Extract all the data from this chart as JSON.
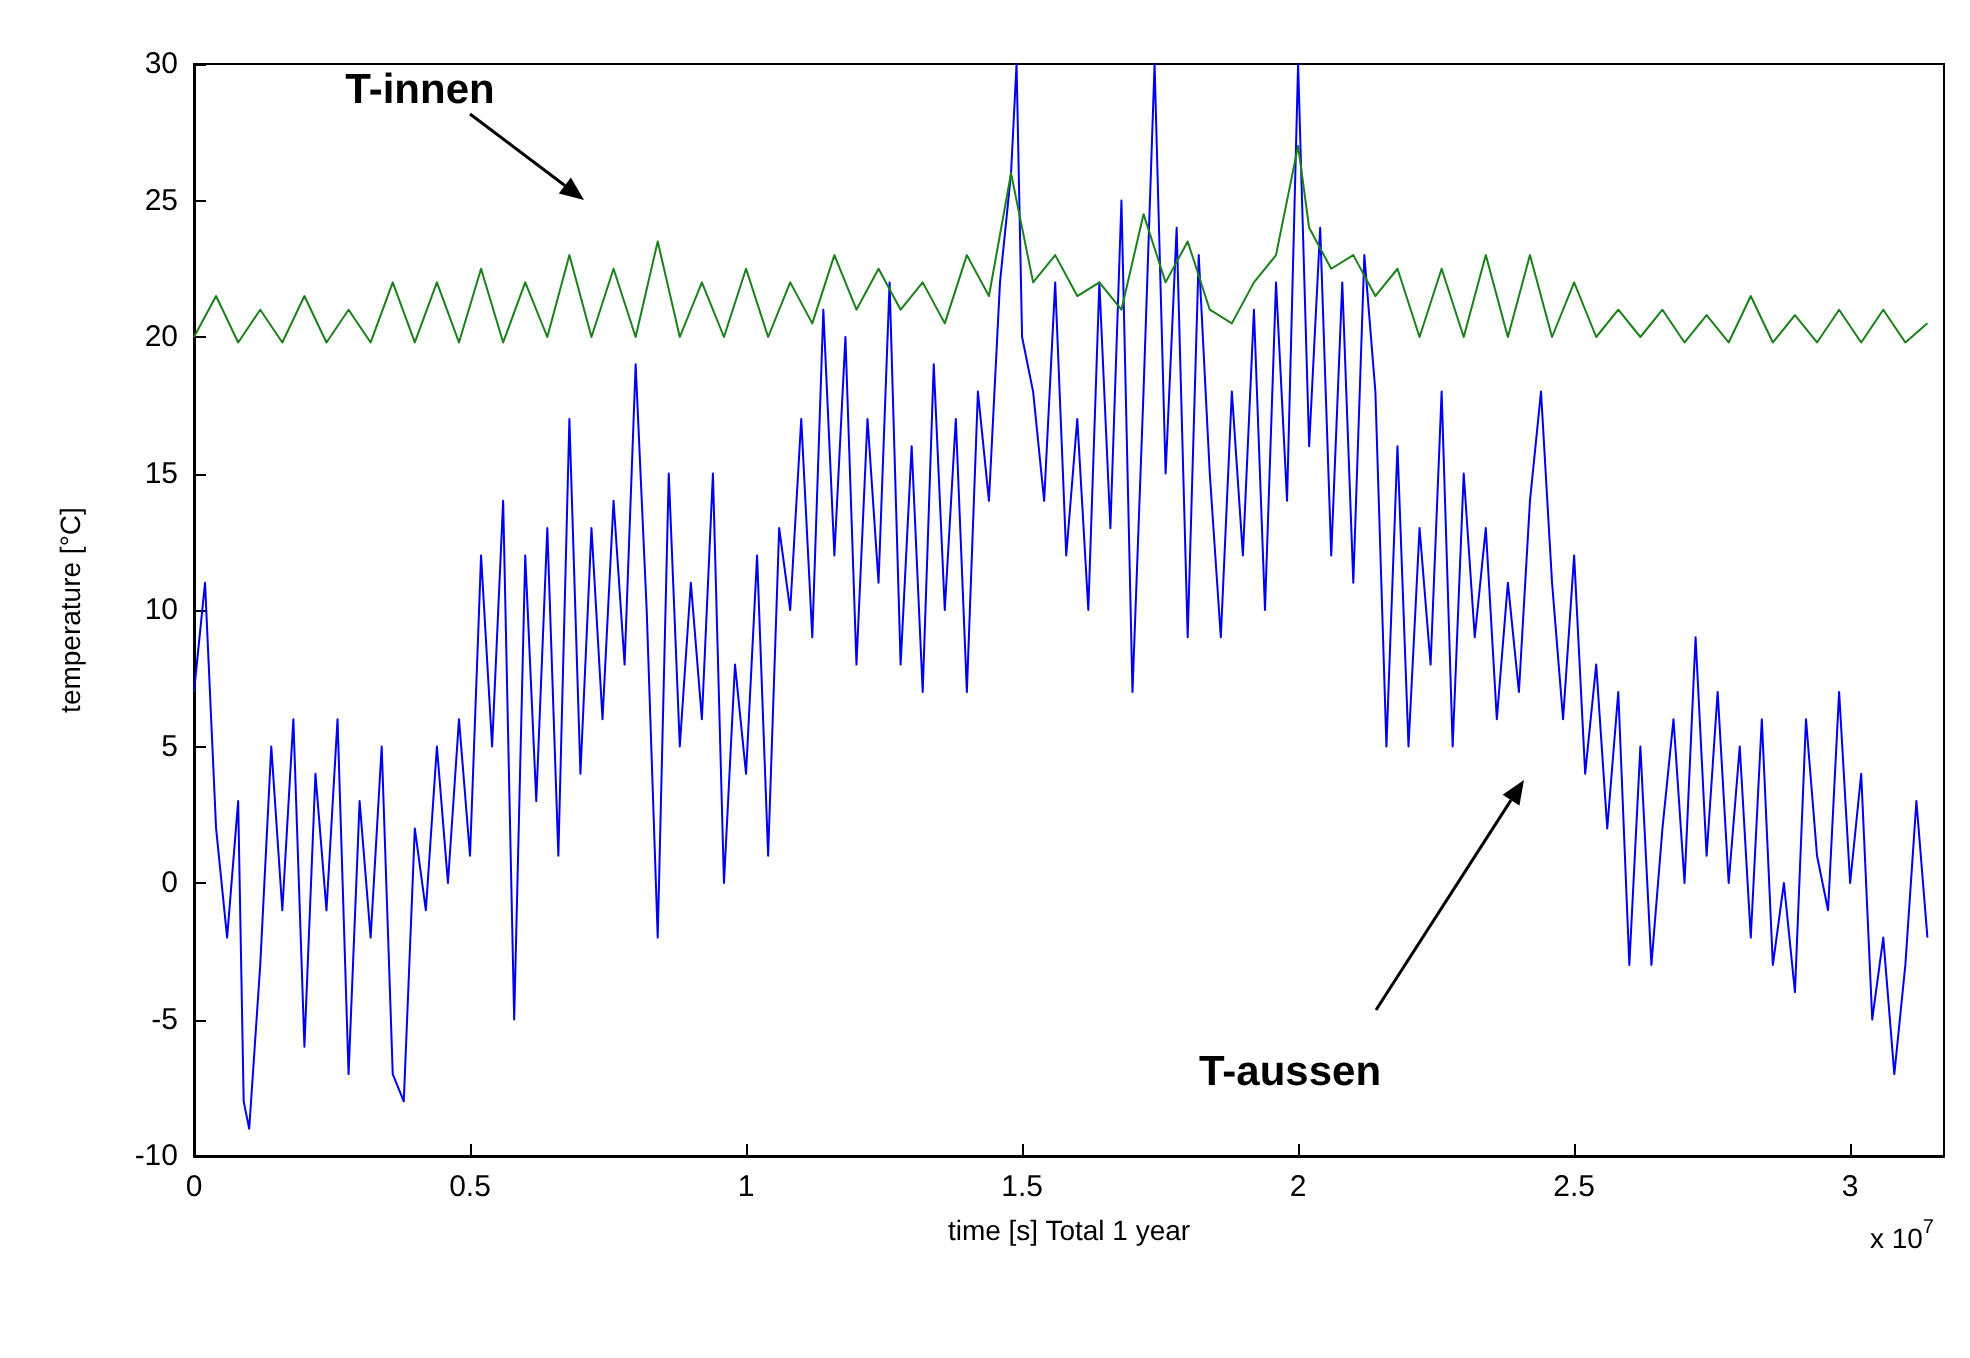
{
  "chart_data": {
    "type": "line",
    "xlabel": "time [s] Total 1 year",
    "ylabel": "temperature [°C]",
    "xlim": [
      0,
      3.17
    ],
    "xticks": [
      0,
      0.5,
      1,
      1.5,
      2,
      2.5,
      3
    ],
    "ylim": [
      -10,
      30
    ],
    "yticks": [
      -10,
      -5,
      0,
      5,
      10,
      15,
      20,
      25,
      30
    ],
    "grid": false,
    "marker": "none",
    "line_style": "solid",
    "annotations": [
      "T-innen",
      "T-aussen",
      "x 10$^{7}$"
    ],
    "series": [
      {
        "color": "#0000f0",
        "x": [
          0,
          0.02,
          0.04,
          0.06,
          0.08,
          0.09,
          0.1,
          0.12,
          0.14,
          0.16,
          0.18,
          0.2,
          0.22,
          0.24,
          0.26,
          0.28,
          0.3,
          0.32,
          0.34,
          0.36,
          0.38,
          0.4,
          0.42,
          0.44,
          0.46,
          0.48,
          0.5,
          0.52,
          0.54,
          0.56,
          0.58,
          0.6,
          0.62,
          0.64,
          0.66,
          0.68,
          0.7,
          0.72,
          0.74,
          0.76,
          0.78,
          0.8,
          0.82,
          0.84,
          0.86,
          0.88,
          0.9,
          0.92,
          0.94,
          0.96,
          0.98,
          1.0,
          1.02,
          1.04,
          1.06,
          1.08,
          1.1,
          1.12,
          1.14,
          1.16,
          1.18,
          1.2,
          1.22,
          1.24,
          1.26,
          1.28,
          1.3,
          1.32,
          1.34,
          1.36,
          1.38,
          1.4,
          1.42,
          1.44,
          1.46,
          1.48,
          1.49,
          1.5,
          1.52,
          1.54,
          1.56,
          1.58,
          1.6,
          1.62,
          1.64,
          1.66,
          1.68,
          1.7,
          1.72,
          1.74,
          1.76,
          1.78,
          1.8,
          1.82,
          1.84,
          1.86,
          1.88,
          1.9,
          1.92,
          1.94,
          1.96,
          1.98,
          2.0,
          2.02,
          2.04,
          2.06,
          2.08,
          2.1,
          2.12,
          2.14,
          2.16,
          2.18,
          2.2,
          2.22,
          2.24,
          2.26,
          2.28,
          2.3,
          2.32,
          2.34,
          2.36,
          2.38,
          2.4,
          2.42,
          2.44,
          2.46,
          2.48,
          2.5,
          2.52,
          2.54,
          2.56,
          2.58,
          2.6,
          2.62,
          2.64,
          2.66,
          2.68,
          2.7,
          2.72,
          2.74,
          2.76,
          2.78,
          2.8,
          2.82,
          2.84,
          2.86,
          2.88,
          2.9,
          2.92,
          2.94,
          2.96,
          2.98,
          3.0,
          3.02,
          3.04,
          3.06,
          3.08,
          3.1,
          3.12,
          3.14
        ],
        "values": [
          7,
          11,
          2,
          -2,
          3,
          -8,
          -9,
          -3,
          5,
          -1,
          6,
          -6,
          4,
          -1,
          6,
          -7,
          3,
          -2,
          5,
          -7,
          -8,
          2,
          -1,
          5,
          0,
          6,
          1,
          12,
          5,
          14,
          -5,
          12,
          3,
          13,
          1,
          17,
          4,
          13,
          6,
          14,
          8,
          19,
          10,
          -2,
          15,
          5,
          11,
          6,
          15,
          0,
          8,
          4,
          12,
          1,
          13,
          10,
          17,
          9,
          21,
          12,
          20,
          8,
          17,
          11,
          22,
          8,
          16,
          7,
          19,
          10,
          17,
          7,
          18,
          14,
          22,
          26,
          30,
          20,
          18,
          14,
          22,
          12,
          17,
          10,
          22,
          13,
          25,
          7,
          18,
          30,
          15,
          24,
          9,
          23,
          15,
          9,
          18,
          12,
          21,
          10,
          22,
          14,
          30,
          16,
          24,
          12,
          22,
          11,
          23,
          18,
          5,
          16,
          5,
          13,
          8,
          18,
          5,
          15,
          9,
          13,
          6,
          11,
          7,
          14,
          18,
          11,
          6,
          12,
          4,
          8,
          2,
          7,
          -3,
          5,
          -3,
          2,
          6,
          0,
          9,
          1,
          7,
          0,
          5,
          -2,
          6,
          -3,
          0,
          -4,
          6,
          1,
          -1,
          7,
          0,
          4,
          -5,
          -2,
          -7,
          -3,
          3,
          -2
        ]
      },
      {
        "color": "#1b801b",
        "x": [
          0,
          0.04,
          0.08,
          0.12,
          0.16,
          0.2,
          0.24,
          0.28,
          0.32,
          0.36,
          0.4,
          0.44,
          0.48,
          0.52,
          0.56,
          0.6,
          0.64,
          0.68,
          0.72,
          0.76,
          0.8,
          0.84,
          0.88,
          0.92,
          0.96,
          1.0,
          1.04,
          1.08,
          1.12,
          1.16,
          1.2,
          1.24,
          1.28,
          1.32,
          1.36,
          1.4,
          1.44,
          1.48,
          1.52,
          1.56,
          1.6,
          1.64,
          1.68,
          1.72,
          1.76,
          1.8,
          1.84,
          1.88,
          1.92,
          1.96,
          2.0,
          2.02,
          2.06,
          2.1,
          2.14,
          2.18,
          2.22,
          2.26,
          2.3,
          2.34,
          2.38,
          2.42,
          2.46,
          2.5,
          2.54,
          2.58,
          2.62,
          2.66,
          2.7,
          2.74,
          2.78,
          2.82,
          2.86,
          2.9,
          2.94,
          2.98,
          3.02,
          3.06,
          3.1,
          3.14
        ],
        "values": [
          20,
          21.5,
          19.8,
          21,
          19.8,
          21.5,
          19.8,
          21,
          19.8,
          22,
          19.8,
          22,
          19.8,
          22.5,
          19.8,
          22,
          20,
          23,
          20,
          22.5,
          20,
          23.5,
          20,
          22,
          20,
          22.5,
          20,
          22,
          20.5,
          23,
          21,
          22.5,
          21,
          22,
          20.5,
          23,
          21.5,
          26,
          22,
          23,
          21.5,
          22,
          21,
          24.5,
          22,
          23.5,
          21,
          20.5,
          22,
          23,
          27,
          24,
          22.5,
          23,
          21.5,
          22.5,
          20,
          22.5,
          20,
          23,
          20,
          23,
          20,
          22,
          20,
          21,
          20,
          21,
          19.8,
          20.8,
          19.8,
          21.5,
          19.8,
          20.8,
          19.8,
          21,
          19.8,
          21,
          19.8,
          20.5
        ]
      }
    ]
  }
}
